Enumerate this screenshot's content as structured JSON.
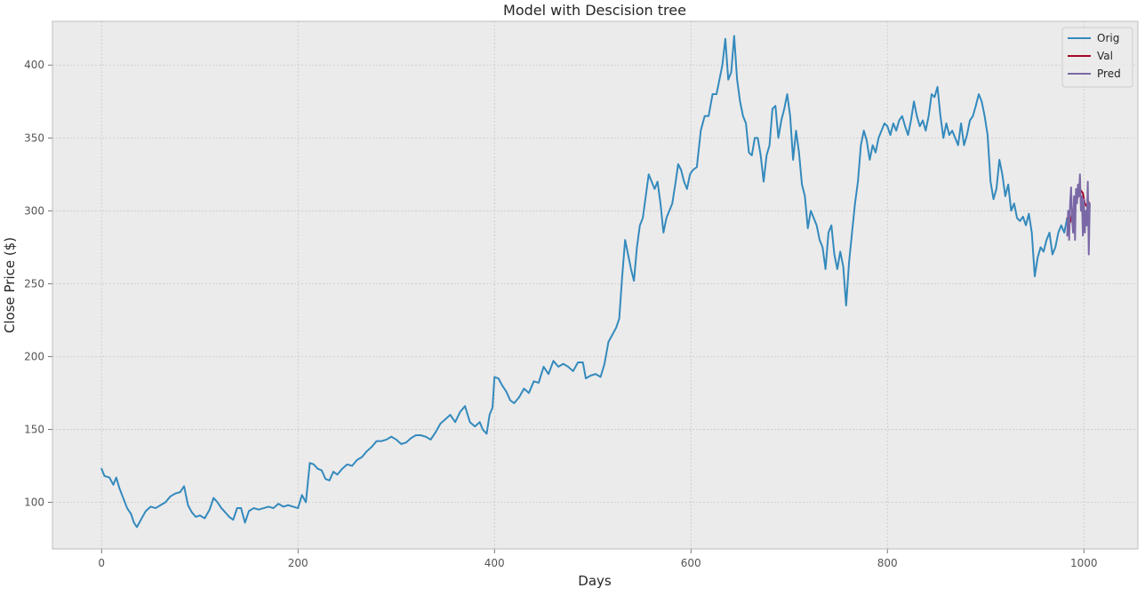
{
  "chart_data": {
    "type": "line",
    "title": "Model with Descision tree",
    "xlabel": "Days",
    "ylabel": "Close Price ($)",
    "xlim": [
      -50,
      1055
    ],
    "ylim": [
      68,
      430
    ],
    "xticks": [
      0,
      200,
      400,
      600,
      800,
      1000
    ],
    "yticks": [
      100,
      150,
      200,
      250,
      300,
      350,
      400
    ],
    "grid": true,
    "legend": "top-right",
    "colors": {
      "plot_background": "#EBEBEB",
      "grid": "#C8C8C8",
      "spine": "#BCBCBC",
      "text": "#262626"
    },
    "series": [
      {
        "name": "Orig",
        "color": "#348ABD",
        "points": [
          [
            0,
            123
          ],
          [
            3,
            118
          ],
          [
            8,
            117
          ],
          [
            12,
            112
          ],
          [
            15,
            117
          ],
          [
            18,
            110
          ],
          [
            22,
            103
          ],
          [
            26,
            96
          ],
          [
            30,
            92
          ],
          [
            33,
            86
          ],
          [
            36,
            83
          ],
          [
            40,
            88
          ],
          [
            45,
            94
          ],
          [
            50,
            97
          ],
          [
            55,
            96
          ],
          [
            60,
            98
          ],
          [
            65,
            100
          ],
          [
            70,
            104
          ],
          [
            75,
            106
          ],
          [
            80,
            107
          ],
          [
            84,
            111
          ],
          [
            88,
            98
          ],
          [
            92,
            93
          ],
          [
            96,
            90
          ],
          [
            100,
            91
          ],
          [
            105,
            89
          ],
          [
            110,
            95
          ],
          [
            114,
            103
          ],
          [
            118,
            100
          ],
          [
            122,
            96
          ],
          [
            126,
            93
          ],
          [
            130,
            90
          ],
          [
            134,
            88
          ],
          [
            138,
            96
          ],
          [
            142,
            96
          ],
          [
            146,
            86
          ],
          [
            150,
            94
          ],
          [
            155,
            96
          ],
          [
            160,
            95
          ],
          [
            165,
            96
          ],
          [
            170,
            97
          ],
          [
            175,
            96
          ],
          [
            180,
            99
          ],
          [
            185,
            97
          ],
          [
            190,
            98
          ],
          [
            195,
            97
          ],
          [
            200,
            96
          ],
          [
            204,
            105
          ],
          [
            208,
            100
          ],
          [
            212,
            127
          ],
          [
            216,
            126
          ],
          [
            220,
            123
          ],
          [
            224,
            122
          ],
          [
            228,
            116
          ],
          [
            232,
            115
          ],
          [
            236,
            121
          ],
          [
            240,
            119
          ],
          [
            245,
            123
          ],
          [
            250,
            126
          ],
          [
            255,
            125
          ],
          [
            260,
            129
          ],
          [
            265,
            131
          ],
          [
            270,
            135
          ],
          [
            275,
            138
          ],
          [
            280,
            142
          ],
          [
            285,
            142
          ],
          [
            290,
            143
          ],
          [
            295,
            145
          ],
          [
            300,
            143
          ],
          [
            305,
            140
          ],
          [
            310,
            141
          ],
          [
            315,
            144
          ],
          [
            320,
            146
          ],
          [
            325,
            146
          ],
          [
            330,
            145
          ],
          [
            335,
            143
          ],
          [
            340,
            148
          ],
          [
            345,
            154
          ],
          [
            350,
            157
          ],
          [
            355,
            160
          ],
          [
            360,
            155
          ],
          [
            365,
            162
          ],
          [
            370,
            166
          ],
          [
            375,
            155
          ],
          [
            380,
            152
          ],
          [
            385,
            155
          ],
          [
            388,
            150
          ],
          [
            392,
            147
          ],
          [
            395,
            160
          ],
          [
            398,
            165
          ],
          [
            400,
            186
          ],
          [
            404,
            185
          ],
          [
            408,
            180
          ],
          [
            412,
            176
          ],
          [
            416,
            170
          ],
          [
            420,
            168
          ],
          [
            425,
            172
          ],
          [
            430,
            178
          ],
          [
            435,
            175
          ],
          [
            440,
            183
          ],
          [
            445,
            182
          ],
          [
            450,
            193
          ],
          [
            455,
            188
          ],
          [
            460,
            197
          ],
          [
            465,
            193
          ],
          [
            470,
            195
          ],
          [
            475,
            193
          ],
          [
            480,
            190
          ],
          [
            485,
            196
          ],
          [
            490,
            196
          ],
          [
            493,
            185
          ],
          [
            498,
            187
          ],
          [
            503,
            188
          ],
          [
            508,
            186
          ],
          [
            512,
            195
          ],
          [
            516,
            210
          ],
          [
            520,
            215
          ],
          [
            524,
            220
          ],
          [
            527,
            226
          ],
          [
            530,
            255
          ],
          [
            533,
            280
          ],
          [
            536,
            270
          ],
          [
            539,
            260
          ],
          [
            542,
            252
          ],
          [
            545,
            275
          ],
          [
            548,
            290
          ],
          [
            551,
            295
          ],
          [
            554,
            310
          ],
          [
            557,
            325
          ],
          [
            560,
            320
          ],
          [
            563,
            315
          ],
          [
            566,
            320
          ],
          [
            569,
            305
          ],
          [
            572,
            285
          ],
          [
            575,
            295
          ],
          [
            578,
            300
          ],
          [
            581,
            305
          ],
          [
            584,
            318
          ],
          [
            587,
            332
          ],
          [
            590,
            328
          ],
          [
            593,
            320
          ],
          [
            596,
            315
          ],
          [
            599,
            325
          ],
          [
            602,
            328
          ],
          [
            606,
            330
          ],
          [
            610,
            355
          ],
          [
            614,
            365
          ],
          [
            618,
            365
          ],
          [
            622,
            380
          ],
          [
            626,
            380
          ],
          [
            629,
            390
          ],
          [
            632,
            400
          ],
          [
            635,
            418
          ],
          [
            638,
            390
          ],
          [
            641,
            395
          ],
          [
            644,
            420
          ],
          [
            647,
            390
          ],
          [
            650,
            375
          ],
          [
            653,
            365
          ],
          [
            656,
            360
          ],
          [
            659,
            340
          ],
          [
            662,
            338
          ],
          [
            665,
            350
          ],
          [
            668,
            350
          ],
          [
            671,
            338
          ],
          [
            674,
            320
          ],
          [
            677,
            338
          ],
          [
            680,
            345
          ],
          [
            683,
            370
          ],
          [
            686,
            372
          ],
          [
            689,
            350
          ],
          [
            692,
            362
          ],
          [
            695,
            370
          ],
          [
            698,
            380
          ],
          [
            701,
            365
          ],
          [
            704,
            335
          ],
          [
            707,
            355
          ],
          [
            710,
            340
          ],
          [
            713,
            318
          ],
          [
            716,
            310
          ],
          [
            719,
            288
          ],
          [
            722,
            300
          ],
          [
            725,
            295
          ],
          [
            728,
            290
          ],
          [
            731,
            280
          ],
          [
            734,
            275
          ],
          [
            737,
            260
          ],
          [
            740,
            285
          ],
          [
            743,
            290
          ],
          [
            746,
            270
          ],
          [
            749,
            260
          ],
          [
            752,
            272
          ],
          [
            755,
            262
          ],
          [
            758,
            235
          ],
          [
            761,
            265
          ],
          [
            764,
            285
          ],
          [
            767,
            305
          ],
          [
            770,
            320
          ],
          [
            773,
            345
          ],
          [
            776,
            355
          ],
          [
            779,
            348
          ],
          [
            782,
            335
          ],
          [
            785,
            345
          ],
          [
            788,
            340
          ],
          [
            791,
            350
          ],
          [
            794,
            355
          ],
          [
            797,
            360
          ],
          [
            800,
            358
          ],
          [
            803,
            352
          ],
          [
            806,
            360
          ],
          [
            809,
            355
          ],
          [
            812,
            362
          ],
          [
            815,
            365
          ],
          [
            818,
            358
          ],
          [
            821,
            352
          ],
          [
            824,
            362
          ],
          [
            827,
            375
          ],
          [
            830,
            365
          ],
          [
            833,
            358
          ],
          [
            836,
            362
          ],
          [
            839,
            355
          ],
          [
            842,
            365
          ],
          [
            845,
            380
          ],
          [
            848,
            378
          ],
          [
            851,
            385
          ],
          [
            854,
            365
          ],
          [
            857,
            350
          ],
          [
            860,
            360
          ],
          [
            863,
            352
          ],
          [
            866,
            355
          ],
          [
            869,
            350
          ],
          [
            872,
            345
          ],
          [
            875,
            360
          ],
          [
            878,
            345
          ],
          [
            881,
            352
          ],
          [
            884,
            362
          ],
          [
            887,
            365
          ],
          [
            890,
            372
          ],
          [
            893,
            380
          ],
          [
            896,
            375
          ],
          [
            899,
            365
          ],
          [
            902,
            352
          ],
          [
            905,
            320
          ],
          [
            908,
            308
          ],
          [
            911,
            315
          ],
          [
            914,
            335
          ],
          [
            917,
            325
          ],
          [
            920,
            310
          ],
          [
            923,
            318
          ],
          [
            926,
            300
          ],
          [
            929,
            305
          ],
          [
            932,
            295
          ],
          [
            935,
            293
          ],
          [
            938,
            296
          ],
          [
            941,
            290
          ],
          [
            944,
            298
          ],
          [
            947,
            285
          ],
          [
            950,
            255
          ],
          [
            953,
            268
          ],
          [
            956,
            275
          ],
          [
            959,
            272
          ],
          [
            962,
            280
          ],
          [
            965,
            285
          ],
          [
            968,
            270
          ],
          [
            971,
            275
          ],
          [
            974,
            285
          ],
          [
            977,
            290
          ],
          [
            980,
            285
          ],
          [
            983,
            295
          ]
        ]
      },
      {
        "name": "Val",
        "color": "#A60628",
        "points": [
          [
            983,
            295
          ],
          [
            986,
            292
          ],
          [
            989,
            300
          ],
          [
            992,
            306
          ],
          [
            995,
            312
          ],
          [
            997,
            314
          ],
          [
            999,
            312
          ],
          [
            1001,
            305
          ],
          [
            1003,
            303
          ],
          [
            1005,
            306
          ]
        ]
      },
      {
        "name": "Pred",
        "color": "#7A68A6",
        "points": [
          [
            983,
            283
          ],
          [
            984,
            300
          ],
          [
            985,
            280
          ],
          [
            986,
            305
          ],
          [
            987,
            316
          ],
          [
            988,
            295
          ],
          [
            989,
            285
          ],
          [
            990,
            310
          ],
          [
            991,
            280
          ],
          [
            992,
            315
          ],
          [
            993,
            305
          ],
          [
            994,
            318
          ],
          [
            995,
            310
          ],
          [
            996,
            325
          ],
          [
            997,
            300
          ],
          [
            998,
            310
          ],
          [
            999,
            283
          ],
          [
            1000,
            308
          ],
          [
            1001,
            285
          ],
          [
            1002,
            300
          ],
          [
            1003,
            290
          ],
          [
            1004,
            320
          ],
          [
            1005,
            270
          ],
          [
            1006,
            305
          ]
        ]
      }
    ]
  }
}
